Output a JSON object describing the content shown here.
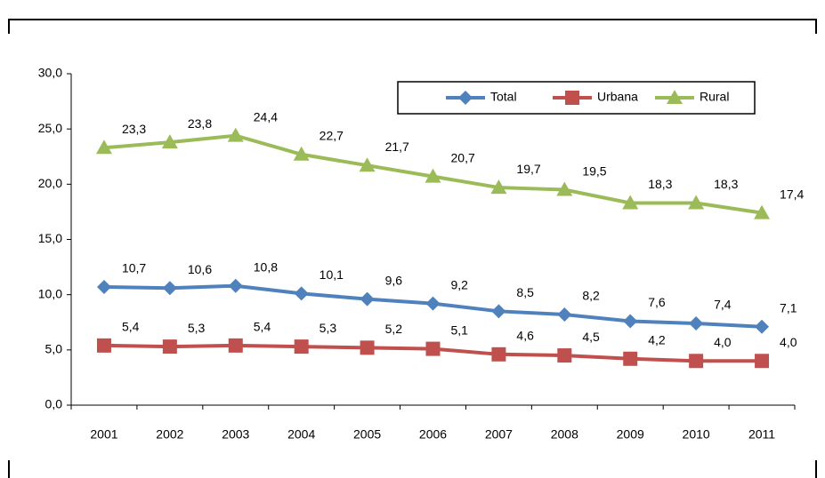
{
  "chart_data": {
    "type": "line",
    "categories": [
      "2001",
      "2002",
      "2003",
      "2004",
      "2005",
      "2006",
      "2007",
      "2008",
      "2009",
      "2010",
      "2011"
    ],
    "series": [
      {
        "name": "Total",
        "color": "#4f81bd",
        "marker": "diamond",
        "values": [
          10.7,
          10.6,
          10.8,
          10.1,
          9.6,
          9.2,
          8.5,
          8.2,
          7.6,
          7.4,
          7.1
        ],
        "value_labels": [
          "10,7",
          "10,6",
          "10,8",
          "10,1",
          "9,6",
          "9,2",
          "8,5",
          "8,2",
          "7,6",
          "7,4",
          "7,1"
        ]
      },
      {
        "name": "Urbana",
        "color": "#c0504d",
        "marker": "square",
        "values": [
          5.4,
          5.3,
          5.4,
          5.3,
          5.2,
          5.1,
          4.6,
          4.5,
          4.2,
          4.0,
          4.0
        ],
        "value_labels": [
          "5,4",
          "5,3",
          "5,4",
          "5,3",
          "5,2",
          "5,1",
          "4,6",
          "4,5",
          "4,2",
          "4,0",
          "4,0"
        ]
      },
      {
        "name": "Rural",
        "color": "#9bbb59",
        "marker": "triangle",
        "values": [
          23.3,
          23.8,
          24.4,
          22.7,
          21.7,
          20.7,
          19.7,
          19.5,
          18.3,
          18.3,
          17.4
        ],
        "value_labels": [
          "23,3",
          "23,8",
          "24,4",
          "22,7",
          "21,7",
          "20,7",
          "19,7",
          "19,5",
          "18,3",
          "18,3",
          "17,4"
        ]
      }
    ],
    "ylim": [
      0,
      30
    ],
    "yticks": [
      {
        "value": 0,
        "label": "0,0"
      },
      {
        "value": 5,
        "label": "5,0"
      },
      {
        "value": 10,
        "label": "10,0"
      },
      {
        "value": 15,
        "label": "15,0"
      },
      {
        "value": 20,
        "label": "20,0"
      },
      {
        "value": 25,
        "label": "25,0"
      },
      {
        "value": 30,
        "label": "30,0"
      }
    ],
    "grid": false,
    "legend": "top-right"
  }
}
